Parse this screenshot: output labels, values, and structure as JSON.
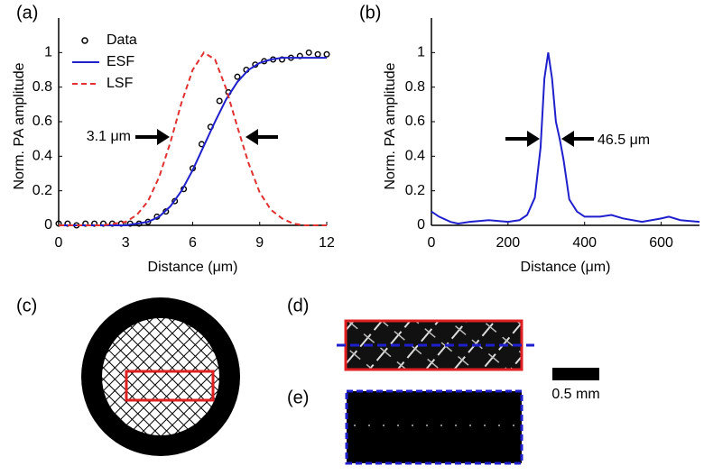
{
  "chart_data": [
    {
      "type": "line",
      "panel_label": "(a)",
      "xlabel": "Distance (μm)",
      "ylabel": "Norm. PA amplitude",
      "xlim": [
        0,
        12
      ],
      "xticks": [
        0,
        3,
        6,
        9,
        12
      ],
      "ylim": [
        0,
        1.2
      ],
      "yticks": [
        0,
        0.2,
        0.4,
        0.6,
        0.8,
        1
      ],
      "legend": "upper left",
      "annotation": "3.1 μm",
      "series": [
        {
          "name": "Data",
          "style": "marker",
          "color": "#000000",
          "x": [
            0,
            0.4,
            0.8,
            1.2,
            1.6,
            2,
            2.4,
            2.8,
            3.2,
            3.6,
            4,
            4.4,
            4.8,
            5.2,
            5.6,
            6,
            6.4,
            6.8,
            7.2,
            7.6,
            8,
            8.4,
            8.8,
            9.2,
            9.6,
            10,
            10.4,
            10.8,
            11.2,
            11.6,
            12
          ],
          "values": [
            0.01,
            0.01,
            0,
            0.01,
            0.01,
            0.01,
            0.01,
            0.01,
            0.01,
            0.01,
            0.02,
            0.05,
            0.08,
            0.14,
            0.21,
            0.33,
            0.47,
            0.57,
            0.72,
            0.77,
            0.86,
            0.9,
            0.93,
            0.95,
            0.96,
            0.96,
            0.97,
            0.98,
            1,
            0.99,
            0.99
          ]
        },
        {
          "name": "ESF",
          "style": "solid",
          "color": "#1f1fcc",
          "x": [
            0,
            0.5,
            1,
            1.5,
            2,
            2.5,
            3,
            3.5,
            4,
            4.5,
            5,
            5.5,
            6,
            6.5,
            7,
            7.5,
            8,
            8.5,
            9,
            9.5,
            10,
            10.5,
            11,
            11.5,
            12
          ],
          "values": [
            0,
            0,
            0,
            0,
            0,
            0,
            0,
            0.01,
            0.02,
            0.05,
            0.11,
            0.2,
            0.32,
            0.46,
            0.6,
            0.73,
            0.83,
            0.9,
            0.94,
            0.96,
            0.97,
            0.97,
            0.97,
            0.97,
            0.97
          ]
        },
        {
          "name": "LSF",
          "style": "dashed",
          "color": "#e03030",
          "x": [
            0,
            0.5,
            1,
            1.5,
            2,
            2.5,
            3,
            3.5,
            4,
            4.5,
            5,
            5.5,
            6,
            6.5,
            7,
            7.5,
            8,
            8.5,
            9,
            9.5,
            10,
            10.5,
            11,
            11.5,
            12
          ],
          "values": [
            0,
            0,
            0,
            0,
            0,
            0.01,
            0.02,
            0.06,
            0.14,
            0.28,
            0.48,
            0.71,
            0.9,
            1,
            0.96,
            0.79,
            0.57,
            0.36,
            0.19,
            0.09,
            0.04,
            0.01,
            0,
            0,
            0
          ]
        }
      ]
    },
    {
      "type": "line",
      "panel_label": "(b)",
      "xlabel": "Distance (μm)",
      "ylabel": "Norm. PA amplitude",
      "xlim": [
        0,
        700
      ],
      "xticks": [
        0,
        200,
        400,
        600
      ],
      "ylim": [
        0,
        1.2
      ],
      "yticks": [
        0,
        0.2,
        0.4,
        0.6,
        0.8,
        1
      ],
      "annotation": "46.5 μm",
      "series": [
        {
          "style": "solid",
          "color": "#1f1fcc",
          "x": [
            0,
            20,
            50,
            70,
            100,
            150,
            200,
            230,
            250,
            270,
            285,
            295,
            305,
            315,
            325,
            335,
            345,
            360,
            380,
            400,
            440,
            470,
            500,
            550,
            600,
            620,
            650,
            700
          ],
          "values": [
            0.08,
            0.05,
            0.02,
            0.01,
            0.02,
            0.03,
            0.02,
            0.03,
            0.06,
            0.16,
            0.45,
            0.85,
            1,
            0.85,
            0.6,
            0.5,
            0.38,
            0.15,
            0.08,
            0.05,
            0.05,
            0.06,
            0.04,
            0.02,
            0.04,
            0.05,
            0.03,
            0.02
          ]
        }
      ]
    }
  ],
  "panel_labels": [
    "(c)",
    "(d)",
    "(e)"
  ],
  "scale_bar_label": "0.5 mm"
}
